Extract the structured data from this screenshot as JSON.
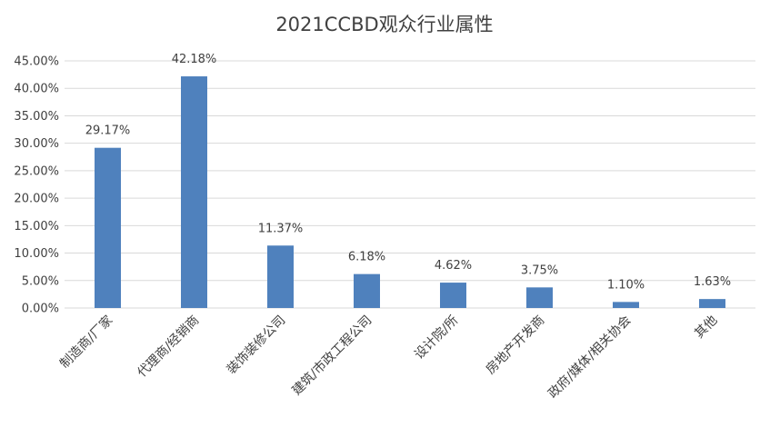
{
  "chart_data": {
    "type": "bar",
    "title": "2021CCBD观众行业属性",
    "categories": [
      "制造商/厂家",
      "代理商/经销商",
      "装饰装修公司",
      "建筑/市政工程公司",
      "设计院/所",
      "房地产开发商",
      "政府/媒体/相关协会",
      "其他"
    ],
    "values": [
      29.17,
      42.18,
      11.37,
      6.18,
      4.62,
      3.75,
      1.1,
      1.63
    ],
    "data_labels": [
      "29.17%",
      "42.18%",
      "11.37%",
      "6.18%",
      "4.62%",
      "3.75%",
      "1.10%",
      "1.63%"
    ],
    "y_ticks": [
      "0.00%",
      "5.00%",
      "10.00%",
      "15.00%",
      "20.00%",
      "25.00%",
      "30.00%",
      "35.00%",
      "40.00%",
      "45.00%"
    ],
    "ylim": [
      0,
      45
    ],
    "xlabel": "",
    "ylabel": "",
    "grid": true,
    "legend": "none",
    "bar_color": "#4f81bd"
  }
}
